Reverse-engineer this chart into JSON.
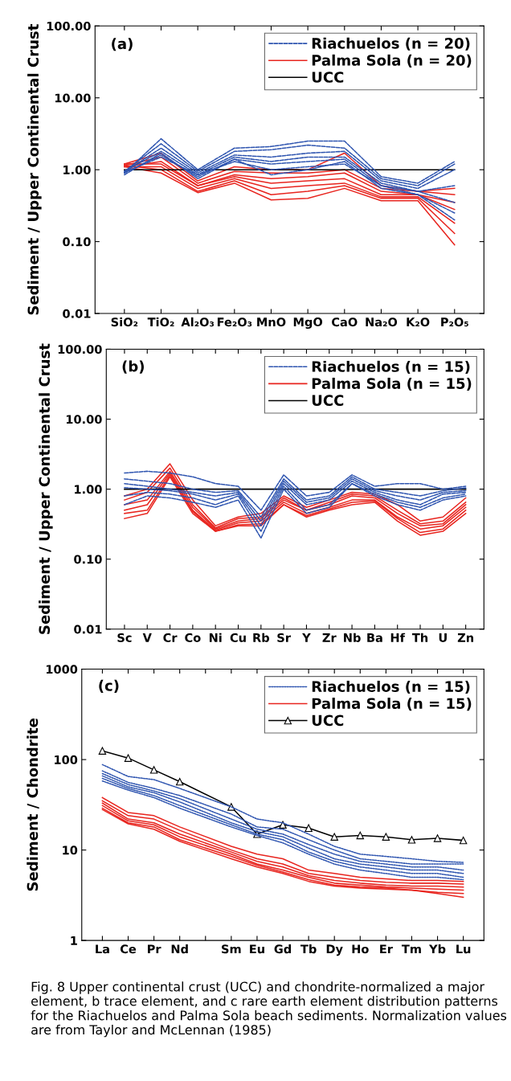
{
  "chart_data": [
    {
      "type": "line",
      "ylabel": "Sediment / Upper Continental Crust",
      "annotations": [
        "(a)"
      ],
      "log": true,
      "grid": false,
      "legend": "top right",
      "categories": [
        "SiO₂",
        "TiO₂",
        "Al₂O₃",
        "Fe₂O₃",
        "MnO",
        "MgO",
        "CaO",
        "Na₂O",
        "K₂O",
        "P₂O₅"
      ],
      "ylim": [
        0.01,
        100
      ],
      "yticks": [
        {
          "value": 0.01,
          "label": "0.01"
        },
        {
          "value": 0.1,
          "label": "0.10"
        },
        {
          "value": 1,
          "label": "1.00"
        },
        {
          "value": 10,
          "label": "10.00"
        },
        {
          "value": 100,
          "label": "100.00"
        }
      ],
      "series": [
        {
          "name": "Riachuelos (n = 20)",
          "color": "#2f55b0",
          "line_style": "dashed",
          "values": [
            0.9,
            2.7,
            1.0,
            2.0,
            2.1,
            2.5,
            2.5,
            0.8,
            0.65,
            1.3
          ]
        },
        {
          "color": "#2f55b0",
          "line_style": "dashed",
          "values": [
            0.95,
            2.3,
            0.95,
            1.8,
            1.9,
            2.2,
            2.0,
            0.75,
            0.6,
            1.2
          ]
        },
        {
          "color": "#2f55b0",
          "line_style": "dashed",
          "values": [
            0.93,
            2.0,
            0.9,
            1.6,
            1.5,
            1.7,
            1.8,
            0.7,
            0.55,
            1.0
          ]
        },
        {
          "color": "#2f55b0",
          "line_style": "dashed",
          "values": [
            0.95,
            1.8,
            0.85,
            1.5,
            1.3,
            1.5,
            1.5,
            0.65,
            0.5,
            0.6
          ]
        },
        {
          "color": "#2f55b0",
          "line_style": "dashed",
          "values": [
            0.9,
            1.6,
            0.8,
            1.4,
            1.2,
            1.3,
            1.4,
            0.6,
            0.5,
            0.35
          ]
        },
        {
          "color": "#2f55b0",
          "line_style": "dashed",
          "values": [
            0.92,
            1.5,
            0.85,
            1.3,
            1.0,
            1.1,
            1.2,
            0.6,
            0.45,
            0.25
          ]
        },
        {
          "color": "#2f55b0",
          "line_style": "dashed",
          "values": [
            0.85,
            1.7,
            0.75,
            1.4,
            0.85,
            1.0,
            1.3,
            0.55,
            0.45,
            0.2
          ]
        },
        {
          "name": "Palma Sola (n = 20)",
          "color": "#e8251f",
          "line_style": "solid",
          "values": [
            1.2,
            1.7,
            0.7,
            1.1,
            1.0,
            1.0,
            1.7,
            0.6,
            0.5,
            0.55
          ]
        },
        {
          "color": "#e8251f",
          "line_style": "solid",
          "values": [
            1.15,
            1.5,
            0.65,
            0.95,
            0.9,
            0.9,
            1.0,
            0.55,
            0.5,
            0.45
          ]
        },
        {
          "color": "#e8251f",
          "line_style": "solid",
          "values": [
            1.1,
            1.3,
            0.6,
            0.85,
            0.75,
            0.8,
            0.9,
            0.5,
            0.45,
            0.35
          ]
        },
        {
          "color": "#e8251f",
          "line_style": "solid",
          "values": [
            1.2,
            1.2,
            0.6,
            0.8,
            0.65,
            0.7,
            0.75,
            0.45,
            0.45,
            0.28
          ]
        },
        {
          "color": "#e8251f",
          "line_style": "solid",
          "values": [
            1.1,
            1.1,
            0.55,
            0.75,
            0.55,
            0.6,
            0.65,
            0.42,
            0.42,
            0.18
          ]
        },
        {
          "color": "#e8251f",
          "line_style": "solid",
          "values": [
            1.15,
            1.0,
            0.5,
            0.7,
            0.45,
            0.5,
            0.6,
            0.4,
            0.4,
            0.13
          ]
        },
        {
          "color": "#e8251f",
          "line_style": "solid",
          "values": [
            1.1,
            0.9,
            0.48,
            0.65,
            0.38,
            0.4,
            0.55,
            0.37,
            0.37,
            0.09
          ]
        },
        {
          "name": "UCC",
          "color": "#000000",
          "line_style": "solid",
          "values": [
            1,
            1,
            1,
            1,
            1,
            1,
            1,
            1,
            1,
            1
          ]
        }
      ]
    },
    {
      "type": "line",
      "ylabel": "Sediment / Upper Continental Crust",
      "annotations": [
        "(b)"
      ],
      "log": true,
      "grid": false,
      "legend": "top right",
      "categories": [
        "Sc",
        "V",
        "Cr",
        "Co",
        "Ni",
        "Cu",
        "Rb",
        "Sr",
        "Y",
        "Zr",
        "Nb",
        "Ba",
        "Hf",
        "Th",
        "U",
        "Zn"
      ],
      "ylim": [
        0.01,
        100
      ],
      "yticks": [
        {
          "value": 0.01,
          "label": "0.01"
        },
        {
          "value": 0.1,
          "label": "0.10"
        },
        {
          "value": 1,
          "label": "1.00"
        },
        {
          "value": 10,
          "label": "10.00"
        },
        {
          "value": 100,
          "label": "100.00"
        }
      ],
      "series": [
        {
          "name": "Riachuelos (n = 15)",
          "color": "#2f55b0",
          "line_style": "dashed",
          "values": [
            1.7,
            1.8,
            1.7,
            1.5,
            1.2,
            1.1,
            0.5,
            1.6,
            0.8,
            0.9,
            1.6,
            1.1,
            1.2,
            1.2,
            1.0,
            1.1
          ]
        },
        {
          "color": "#2f55b0",
          "line_style": "dashed",
          "values": [
            1.4,
            1.3,
            1.2,
            1.0,
            0.9,
            0.95,
            0.4,
            1.4,
            0.7,
            0.8,
            1.5,
            1.0,
            0.9,
            0.8,
            0.95,
            1.04
          ]
        },
        {
          "color": "#2f55b0",
          "line_style": "dashed",
          "values": [
            1.2,
            1.1,
            1.0,
            0.9,
            0.8,
            0.9,
            0.35,
            1.3,
            0.65,
            0.75,
            1.4,
            0.95,
            0.8,
            0.7,
            0.9,
            0.95
          ]
        },
        {
          "color": "#2f55b0",
          "line_style": "dashed",
          "values": [
            1.05,
            1.0,
            0.95,
            0.85,
            0.7,
            0.85,
            0.3,
            1.2,
            0.6,
            0.7,
            1.3,
            0.9,
            0.7,
            0.6,
            0.85,
            0.9
          ]
        },
        {
          "color": "#2f55b0",
          "line_style": "dashed",
          "values": [
            0.8,
            0.9,
            0.85,
            0.75,
            0.6,
            0.8,
            0.25,
            1.1,
            0.5,
            0.6,
            1.2,
            0.85,
            0.65,
            0.55,
            0.75,
            0.85
          ]
        },
        {
          "color": "#2f55b0",
          "line_style": "dashed",
          "values": [
            0.6,
            0.8,
            0.75,
            0.65,
            0.55,
            0.7,
            0.2,
            1.0,
            0.45,
            0.55,
            1.2,
            0.8,
            0.6,
            0.5,
            0.7,
            0.8
          ]
        },
        {
          "name": "Palma Sola (n = 15)",
          "color": "#e8251f",
          "line_style": "solid",
          "values": [
            0.8,
            1.0,
            2.3,
            0.7,
            0.3,
            0.4,
            0.45,
            0.8,
            0.55,
            0.7,
            0.9,
            0.85,
            0.6,
            0.35,
            0.4,
            0.75
          ]
        },
        {
          "color": "#e8251f",
          "line_style": "solid",
          "values": [
            0.7,
            0.9,
            2.0,
            0.6,
            0.28,
            0.38,
            0.4,
            0.75,
            0.5,
            0.65,
            0.85,
            0.8,
            0.5,
            0.32,
            0.35,
            0.65
          ]
        },
        {
          "color": "#e8251f",
          "line_style": "solid",
          "values": [
            0.6,
            0.7,
            1.8,
            0.55,
            0.27,
            0.35,
            0.38,
            0.7,
            0.5,
            0.6,
            0.8,
            0.75,
            0.45,
            0.3,
            0.32,
            0.6
          ]
        },
        {
          "color": "#e8251f",
          "line_style": "solid",
          "values": [
            0.5,
            0.6,
            1.7,
            0.5,
            0.26,
            0.33,
            0.35,
            0.65,
            0.45,
            0.55,
            0.7,
            0.7,
            0.4,
            0.27,
            0.3,
            0.55
          ]
        },
        {
          "color": "#e8251f",
          "line_style": "solid",
          "values": [
            0.45,
            0.5,
            1.6,
            0.48,
            0.25,
            0.31,
            0.32,
            0.6,
            0.42,
            0.52,
            0.65,
            0.68,
            0.38,
            0.24,
            0.27,
            0.5
          ]
        },
        {
          "color": "#e8251f",
          "line_style": "solid",
          "values": [
            0.38,
            0.45,
            1.5,
            0.45,
            0.25,
            0.3,
            0.3,
            0.6,
            0.4,
            0.5,
            0.6,
            0.65,
            0.35,
            0.22,
            0.25,
            0.45
          ]
        },
        {
          "name": "UCC",
          "color": "#000000",
          "line_style": "solid",
          "values": [
            1,
            1,
            1,
            1,
            1,
            1,
            1,
            1,
            1,
            1,
            1,
            1,
            1,
            1,
            1,
            1
          ]
        }
      ]
    },
    {
      "type": "line",
      "ylabel": "Sediment / Chondrite",
      "annotations": [
        "(c)",
        "Fig. 8 Upper continental crust (UCC) and chondrite-normalized a major element, b trace element, and c rare earth element distribution patterns for the Riachuelos and Palma Sola beach sediments. Normalization values are from Taylor and McLennan (1985)"
      ],
      "log": true,
      "grid": false,
      "legend": "top right",
      "categories": [
        "La",
        "Ce",
        "Pr",
        "Nd",
        null,
        "Sm",
        "Eu",
        "Gd",
        "Tb",
        "Dy",
        "Ho",
        "Er",
        "Tm",
        "Yb",
        "Lu"
      ],
      "ylim": [
        1,
        1000
      ],
      "yticks": [
        1,
        10,
        100,
        1000
      ],
      "series": [
        {
          "name": "Riachuelos (n = 15)",
          "color": "#2f55b0",
          "line_style": "dotted",
          "values": [
            88,
            65,
            60,
            48,
            null,
            30,
            22,
            20,
            15,
            11,
            9,
            8.5,
            8,
            7.5,
            7.3
          ]
        },
        {
          "color": "#2f55b0",
          "line_style": "dotted",
          "values": [
            75,
            56,
            48,
            40,
            null,
            25,
            18,
            17,
            13,
            10,
            8,
            7.5,
            7,
            7,
            7
          ]
        },
        {
          "color": "#2f55b0",
          "line_style": "dotted",
          "values": [
            70,
            53,
            45,
            37,
            null,
            22,
            17,
            15,
            11.5,
            9,
            7.5,
            7,
            6.5,
            6.5,
            6
          ]
        },
        {
          "color": "#2f55b0",
          "line_style": "dotted",
          "values": [
            66,
            50,
            43,
            34,
            null,
            20,
            16,
            14,
            10.5,
            8,
            7,
            6.5,
            6,
            6,
            5.5
          ]
        },
        {
          "color": "#2f55b0",
          "line_style": "dotted",
          "values": [
            62,
            48,
            40,
            31,
            null,
            19,
            15,
            13,
            9.5,
            7.5,
            6.5,
            6,
            5.5,
            5.5,
            5
          ]
        },
        {
          "color": "#2f55b0",
          "line_style": "dotted",
          "values": [
            58,
            46,
            38,
            29,
            null,
            18,
            14.5,
            12,
            9,
            7,
            6,
            5.5,
            5,
            5,
            4.7
          ]
        },
        {
          "name": "Palma Sola (n = 15)",
          "color": "#e8251f",
          "line_style": "solid",
          "values": [
            38,
            26,
            24,
            18,
            null,
            11,
            9,
            8,
            6,
            5.5,
            5,
            4.8,
            4.6,
            4.6,
            4.5
          ]
        },
        {
          "color": "#e8251f",
          "line_style": "solid",
          "values": [
            35,
            24,
            22,
            16.5,
            null,
            10,
            8,
            7,
            5.5,
            5,
            4.6,
            4.4,
            4.3,
            4.3,
            4.2
          ]
        },
        {
          "color": "#e8251f",
          "line_style": "solid",
          "values": [
            33,
            22,
            20,
            15,
            null,
            9.5,
            7.5,
            6.5,
            5.2,
            4.6,
            4.3,
            4.1,
            4,
            4,
            3.9
          ]
        },
        {
          "color": "#e8251f",
          "line_style": "solid",
          "values": [
            31,
            21,
            19,
            14,
            null,
            9,
            7,
            6,
            5,
            4.3,
            4.1,
            3.9,
            3.8,
            3.7,
            3.6
          ]
        },
        {
          "color": "#e8251f",
          "line_style": "solid",
          "values": [
            29,
            20,
            18,
            13,
            null,
            8.5,
            6.8,
            5.7,
            4.7,
            4.1,
            3.9,
            3.8,
            3.6,
            3.4,
            3.3
          ]
        },
        {
          "color": "#e8251f",
          "line_style": "solid",
          "values": [
            28,
            19.5,
            17,
            12.5,
            null,
            8,
            6.5,
            5.5,
            4.5,
            4,
            3.8,
            3.7,
            3.6,
            3.3,
            3.0
          ]
        },
        {
          "name": "UCC",
          "color": "#000000",
          "line_style": "solid",
          "marker": "triangle",
          "values": [
            125,
            104,
            77,
            57,
            null,
            30,
            15,
            19,
            17.5,
            14,
            14.5,
            14,
            13,
            13.5,
            12.8
          ]
        }
      ]
    }
  ]
}
